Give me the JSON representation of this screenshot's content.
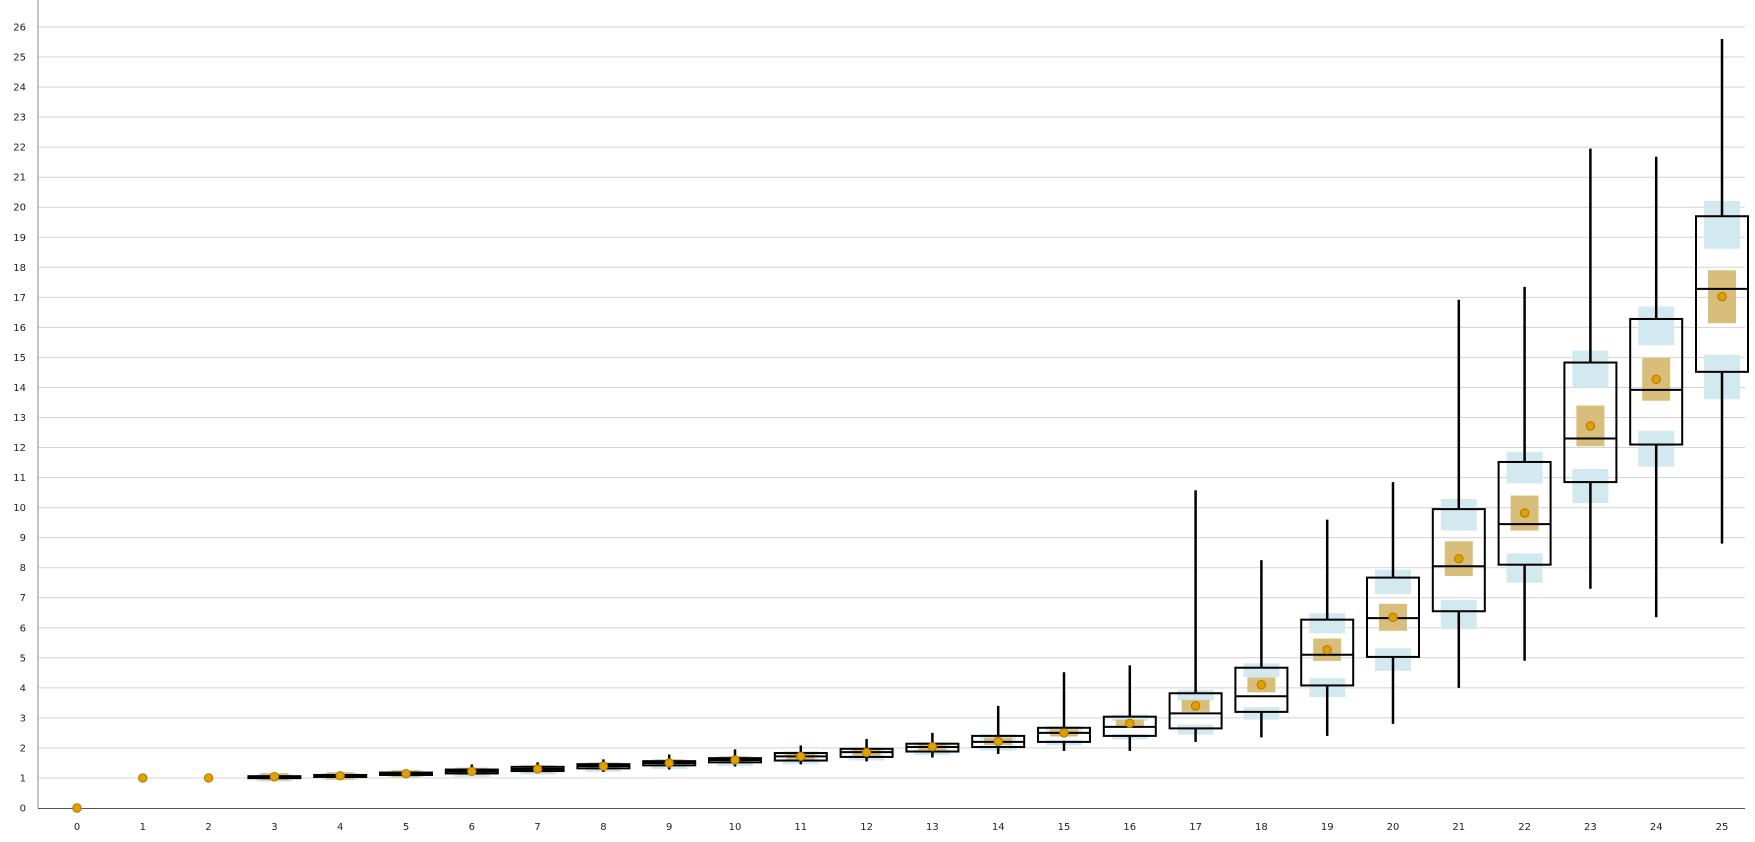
{
  "chart_data": {
    "type": "boxplot",
    "title": "",
    "xlabel": "",
    "ylabel": "",
    "xlim": [
      0,
      25
    ],
    "ylim": [
      0,
      26
    ],
    "grid": true,
    "x_ticks": [
      "0",
      "1",
      "2",
      "3",
      "4",
      "5",
      "6",
      "7",
      "8",
      "9",
      "10",
      "11",
      "12",
      "13",
      "14",
      "15",
      "16",
      "17",
      "18",
      "19",
      "20",
      "21",
      "22",
      "23",
      "24",
      "25"
    ],
    "y_ticks": [
      "0",
      "1",
      "2",
      "3",
      "4",
      "5",
      "6",
      "7",
      "8",
      "9",
      "10",
      "11",
      "12",
      "13",
      "14",
      "15",
      "16",
      "17",
      "18",
      "19",
      "20",
      "21",
      "22",
      "23",
      "24",
      "25",
      "26"
    ],
    "colors": {
      "grid": "#d3d3d3",
      "box_stroke": "#000000",
      "whisker": "#000000",
      "mean_marker": "#e0a000",
      "mean_ci": "#d8be7a",
      "quartile_ci": "#d3e9f0"
    },
    "series": [
      {
        "x": 0,
        "min": 0,
        "q1": 0,
        "median": 0,
        "q3": 0,
        "max": 0,
        "mean": 0
      },
      {
        "x": 1,
        "min": 1,
        "q1": 1,
        "median": 1,
        "q3": 1,
        "max": 1,
        "mean": 1
      },
      {
        "x": 2,
        "min": 1,
        "q1": 1,
        "median": 1,
        "q3": 1,
        "max": 1,
        "mean": 1
      },
      {
        "x": 3,
        "min": 1.0,
        "q1": 1.0,
        "median": 1.03,
        "q3": 1.06,
        "max": 1.1,
        "mean": 1.04
      },
      {
        "x": 4,
        "min": 1.03,
        "q1": 1.05,
        "median": 1.08,
        "q3": 1.1,
        "max": 1.15,
        "mean": 1.07
      },
      {
        "x": 5,
        "min": 1.08,
        "q1": 1.1,
        "median": 1.14,
        "q3": 1.18,
        "max": 1.23,
        "mean": 1.14
      },
      {
        "x": 6,
        "min": 1.12,
        "q1": 1.15,
        "median": 1.22,
        "q3": 1.28,
        "max": 1.45,
        "mean": 1.22
      },
      {
        "x": 7,
        "min": 1.18,
        "q1": 1.23,
        "median": 1.3,
        "q3": 1.37,
        "max": 1.52,
        "mean": 1.3
      },
      {
        "x": 8,
        "min": 1.2,
        "q1": 1.32,
        "median": 1.4,
        "q3": 1.46,
        "max": 1.62,
        "mean": 1.39
      },
      {
        "x": 9,
        "min": 1.28,
        "q1": 1.42,
        "median": 1.5,
        "q3": 1.56,
        "max": 1.78,
        "mean": 1.5
      },
      {
        "x": 10,
        "min": 1.38,
        "q1": 1.52,
        "median": 1.6,
        "q3": 1.66,
        "max": 1.95,
        "mean": 1.6
      },
      {
        "x": 11,
        "min": 1.45,
        "q1": 1.58,
        "median": 1.72,
        "q3": 1.83,
        "max": 2.08,
        "mean": 1.72
      },
      {
        "x": 12,
        "min": 1.55,
        "q1": 1.7,
        "median": 1.86,
        "q3": 1.97,
        "max": 2.3,
        "mean": 1.85
      },
      {
        "x": 13,
        "min": 1.68,
        "q1": 1.88,
        "median": 2.03,
        "q3": 2.14,
        "max": 2.5,
        "mean": 2.04
      },
      {
        "x": 14,
        "min": 1.8,
        "q1": 2.03,
        "median": 2.2,
        "q3": 2.4,
        "max": 3.4,
        "mean": 2.22
      },
      {
        "x": 15,
        "min": 1.9,
        "q1": 2.2,
        "median": 2.5,
        "q3": 2.67,
        "max": 4.52,
        "mean": 2.5
      },
      {
        "x": 16,
        "min": 1.9,
        "q1": 2.4,
        "median": 2.7,
        "q3": 3.04,
        "max": 4.75,
        "mean": 2.82
      },
      {
        "x": 17,
        "min": 2.2,
        "q1": 2.65,
        "median": 3.15,
        "q3": 3.82,
        "max": 10.58,
        "mean": 3.4
      },
      {
        "x": 18,
        "min": 2.35,
        "q1": 3.2,
        "median": 3.72,
        "q3": 4.67,
        "max": 8.25,
        "mean": 4.1
      },
      {
        "x": 19,
        "min": 2.4,
        "q1": 4.08,
        "median": 5.1,
        "q3": 6.27,
        "max": 9.6,
        "mean": 5.27
      },
      {
        "x": 20,
        "min": 2.8,
        "q1": 5.03,
        "median": 6.32,
        "q3": 7.67,
        "max": 10.85,
        "mean": 6.35
      },
      {
        "x": 21,
        "min": 4.0,
        "q1": 6.55,
        "median": 8.05,
        "q3": 9.95,
        "max": 16.92,
        "mean": 8.3
      },
      {
        "x": 22,
        "min": 4.9,
        "q1": 8.1,
        "median": 9.45,
        "q3": 11.52,
        "max": 17.35,
        "mean": 9.82
      },
      {
        "x": 23,
        "min": 7.3,
        "q1": 10.85,
        "median": 12.3,
        "q3": 14.83,
        "max": 21.95,
        "mean": 12.72
      },
      {
        "x": 24,
        "min": 6.35,
        "q1": 12.1,
        "median": 13.92,
        "q3": 16.28,
        "max": 21.68,
        "mean": 14.27
      },
      {
        "x": 25,
        "min": 8.8,
        "q1": 14.52,
        "median": 17.28,
        "q3": 19.7,
        "max": 25.6,
        "mean": 17.02
      }
    ]
  }
}
